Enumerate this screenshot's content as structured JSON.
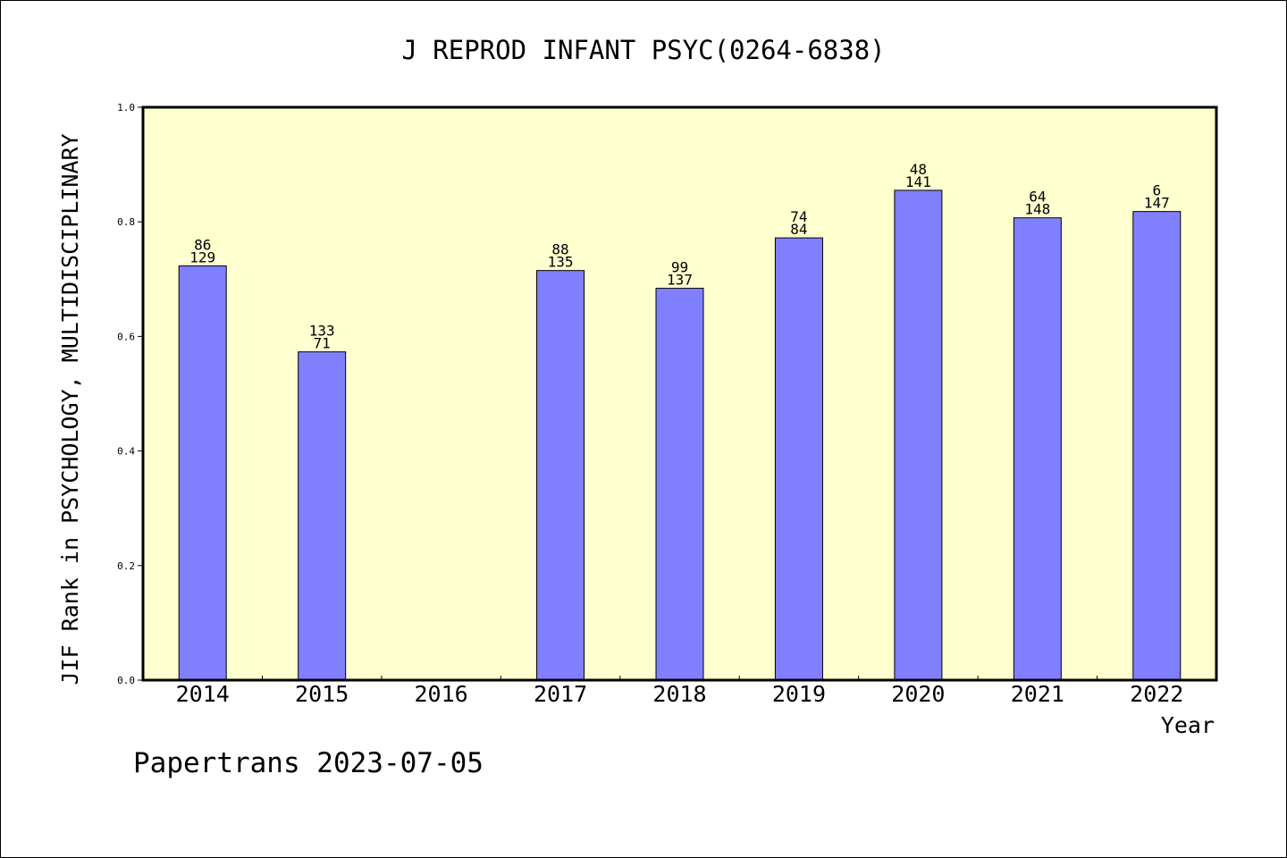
{
  "chart_data": {
    "type": "bar",
    "title": "J REPROD INFANT PSYC(0264-6838)",
    "xlabel": "Year",
    "ylabel": "JIF Rank in PSYCHOLOGY, MULTIDISCIPLINARY",
    "ylim": [
      0.0,
      1.0
    ],
    "yticks": [
      "0.0",
      "0.2",
      "0.4",
      "0.6",
      "0.8",
      "1.0"
    ],
    "categories": [
      "2014",
      "2015",
      "2016",
      "2017",
      "2018",
      "2019",
      "2020",
      "2021",
      "2022"
    ],
    "values": [
      0.723,
      0.573,
      null,
      0.715,
      0.684,
      0.772,
      0.855,
      0.807,
      0.818
    ],
    "bar_labels": [
      [
        "86",
        "129"
      ],
      [
        "133",
        "71"
      ],
      null,
      [
        "88",
        "135"
      ],
      [
        "99",
        "137"
      ],
      [
        "74",
        "84"
      ],
      [
        "48",
        "141"
      ],
      [
        "64",
        "148"
      ],
      [
        "6",
        "147"
      ]
    ],
    "bar_color": "#8080ff",
    "plot_background": "#ffffd0",
    "grid": false
  },
  "footer": "Papertrans 2023-07-05"
}
